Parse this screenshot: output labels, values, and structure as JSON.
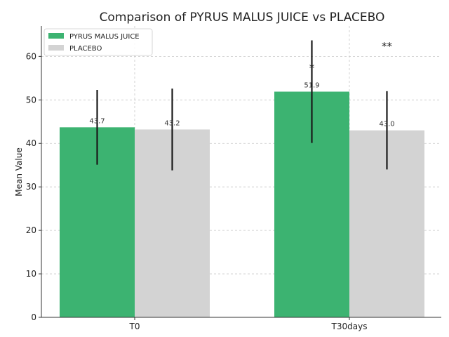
{
  "chart_data": {
    "type": "bar",
    "title": "Comparison of PYRUS MALUS JUICE vs PLACEBO",
    "xlabel": "",
    "ylabel": "Mean Value",
    "ylim": [
      0,
      67
    ],
    "yticks": [
      0,
      10,
      20,
      30,
      40,
      50,
      60
    ],
    "grid": true,
    "legend_position": "top-left",
    "categories": [
      "T0",
      "T30days"
    ],
    "series": [
      {
        "name": "PYRUS MALUS JUICE",
        "color": "#3cb371",
        "values": [
          43.7,
          51.9
        ],
        "value_labels": [
          "43.7",
          "51.9"
        ],
        "error": [
          8.6,
          11.8
        ]
      },
      {
        "name": "PLACEBO",
        "color": "#d3d3d3",
        "values": [
          43.2,
          43.0
        ],
        "value_labels": [
          "43.2",
          "43.0"
        ],
        "error": [
          9.4,
          9.0
        ]
      }
    ],
    "annotations": [
      {
        "text": "*",
        "category": 1,
        "series": 0,
        "y": 57.5
      },
      {
        "text": "**",
        "category": 1,
        "series": 1,
        "y": 62.5
      }
    ]
  }
}
